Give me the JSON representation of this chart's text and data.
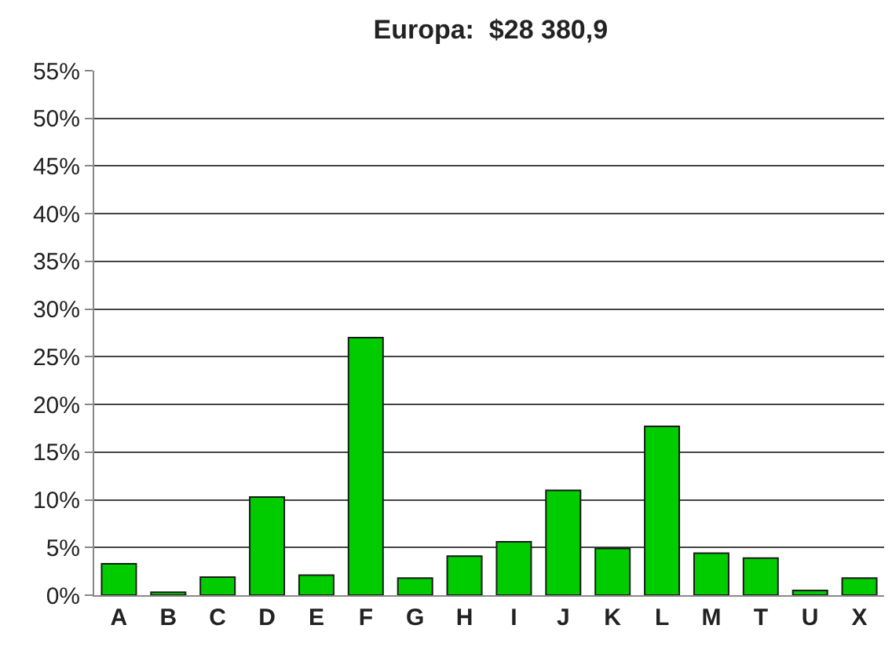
{
  "chart_data": {
    "type": "bar",
    "title": "Europa:  $28 380,9",
    "categories": [
      "A",
      "B",
      "C",
      "D",
      "E",
      "F",
      "G",
      "H",
      "I",
      "J",
      "K",
      "L",
      "M",
      "T",
      "U",
      "X"
    ],
    "values": [
      3.3,
      0.3,
      1.9,
      10.3,
      2.1,
      27.0,
      1.8,
      4.1,
      5.6,
      11.0,
      4.9,
      17.7,
      4.4,
      3.9,
      0.5,
      1.8
    ],
    "color": "#00cc00",
    "ylim": [
      0,
      55
    ],
    "yticks": [
      {
        "value": 0,
        "label": "0%"
      },
      {
        "value": 5,
        "label": "5%"
      },
      {
        "value": 10,
        "label": "10%"
      },
      {
        "value": 15,
        "label": "15%"
      },
      {
        "value": 20,
        "label": "20%"
      },
      {
        "value": 25,
        "label": "25%"
      },
      {
        "value": 30,
        "label": "30%"
      },
      {
        "value": 35,
        "label": "35%"
      },
      {
        "value": 40,
        "label": "40%"
      },
      {
        "value": 45,
        "label": "45%"
      },
      {
        "value": 50,
        "label": "50%"
      },
      {
        "value": 55,
        "label": "55%"
      }
    ],
    "grid": "y"
  }
}
